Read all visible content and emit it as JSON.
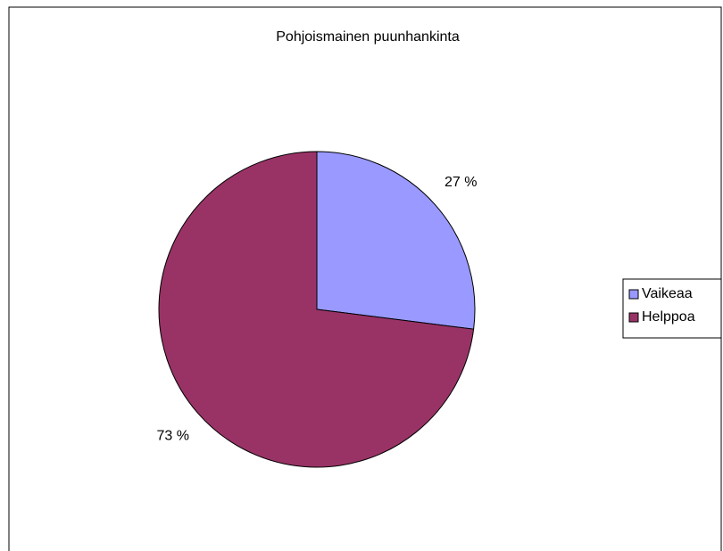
{
  "chart_data": {
    "type": "pie",
    "title": "Pohjoismainen puunhankinta",
    "categories": [
      "Vaikeaa",
      "Helppoa"
    ],
    "values": [
      27,
      73
    ],
    "value_labels": [
      "27 %",
      "73 %"
    ],
    "colors": [
      "#9999ff",
      "#993366"
    ],
    "legend": "right"
  }
}
